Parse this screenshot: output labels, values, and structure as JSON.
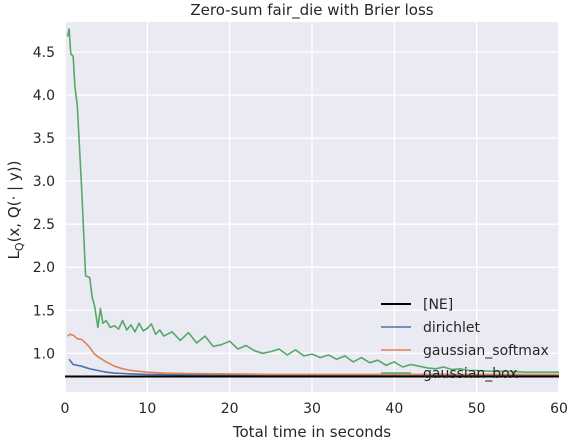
{
  "chart_data": {
    "type": "line",
    "title": "Zero-sum fair_die with Brier loss",
    "xlabel": "Total time in seconds",
    "ylabel": "L_Q(x, Q(· | y))",
    "ylabel_parts": {
      "main": "L",
      "sub": "Q",
      "rest": "(x, Q(· | y))"
    },
    "xlim": [
      0,
      60
    ],
    "ylim": [
      0.55,
      4.85
    ],
    "xticks": [
      0,
      10,
      20,
      30,
      40,
      50,
      60
    ],
    "yticks": [
      1.0,
      1.5,
      2.0,
      2.5,
      3.0,
      3.5,
      4.0,
      4.5
    ],
    "grid": true,
    "legend_position": "lower-right",
    "series": [
      {
        "name": "[NE]",
        "color": "#000000",
        "x": [
          0,
          60
        ],
        "values": [
          0.73,
          0.73
        ]
      },
      {
        "name": "dirichlet",
        "color": "#4c72b0",
        "x": [
          0.5,
          1,
          2,
          3,
          4,
          5,
          6,
          8,
          10,
          15,
          20,
          30,
          40,
          50,
          60
        ],
        "values": [
          0.93,
          0.87,
          0.85,
          0.82,
          0.8,
          0.78,
          0.77,
          0.76,
          0.755,
          0.75,
          0.745,
          0.745,
          0.745,
          0.745,
          0.745
        ]
      },
      {
        "name": "gaussian_softmax",
        "color": "#dd8452",
        "x": [
          0.3,
          0.6,
          1,
          1.5,
          2,
          2.5,
          3,
          3.5,
          4,
          5,
          6,
          7,
          8,
          9,
          10,
          12,
          15,
          20,
          25,
          30,
          40,
          50,
          60
        ],
        "values": [
          1.2,
          1.22,
          1.21,
          1.17,
          1.16,
          1.12,
          1.07,
          1.0,
          0.96,
          0.9,
          0.85,
          0.82,
          0.8,
          0.79,
          0.78,
          0.77,
          0.765,
          0.76,
          0.755,
          0.755,
          0.755,
          0.755,
          0.755
        ]
      },
      {
        "name": "gaussian_box",
        "color": "#55a868",
        "x": [
          0.3,
          0.5,
          0.7,
          1.0,
          1.2,
          1.5,
          2.0,
          2.5,
          3.0,
          3.3,
          3.6,
          4.0,
          4.3,
          4.6,
          5,
          5.5,
          6,
          6.5,
          7,
          7.5,
          8,
          8.5,
          9,
          9.5,
          10,
          10.5,
          11,
          11.5,
          12,
          13,
          14,
          15,
          16,
          17,
          18,
          19,
          20,
          21,
          22,
          23,
          24,
          25,
          26,
          27,
          28,
          29,
          30,
          31,
          32,
          33,
          34,
          35,
          36,
          37,
          38,
          39,
          40,
          41,
          42,
          43,
          44,
          45,
          46,
          47,
          48,
          49,
          50,
          52,
          54,
          56,
          58,
          60
        ],
        "values": [
          4.68,
          4.77,
          4.48,
          4.45,
          4.1,
          3.88,
          2.95,
          1.9,
          1.88,
          1.65,
          1.55,
          1.3,
          1.52,
          1.35,
          1.38,
          1.3,
          1.32,
          1.28,
          1.38,
          1.27,
          1.33,
          1.25,
          1.35,
          1.26,
          1.29,
          1.34,
          1.22,
          1.27,
          1.2,
          1.25,
          1.15,
          1.24,
          1.12,
          1.2,
          1.08,
          1.1,
          1.14,
          1.05,
          1.09,
          1.03,
          1.0,
          1.02,
          1.05,
          0.98,
          1.04,
          0.97,
          0.99,
          0.95,
          0.98,
          0.93,
          0.97,
          0.9,
          0.95,
          0.89,
          0.92,
          0.86,
          0.9,
          0.84,
          0.87,
          0.85,
          0.83,
          0.82,
          0.84,
          0.81,
          0.82,
          0.8,
          0.8,
          0.79,
          0.79,
          0.78,
          0.78,
          0.78
        ]
      }
    ]
  }
}
